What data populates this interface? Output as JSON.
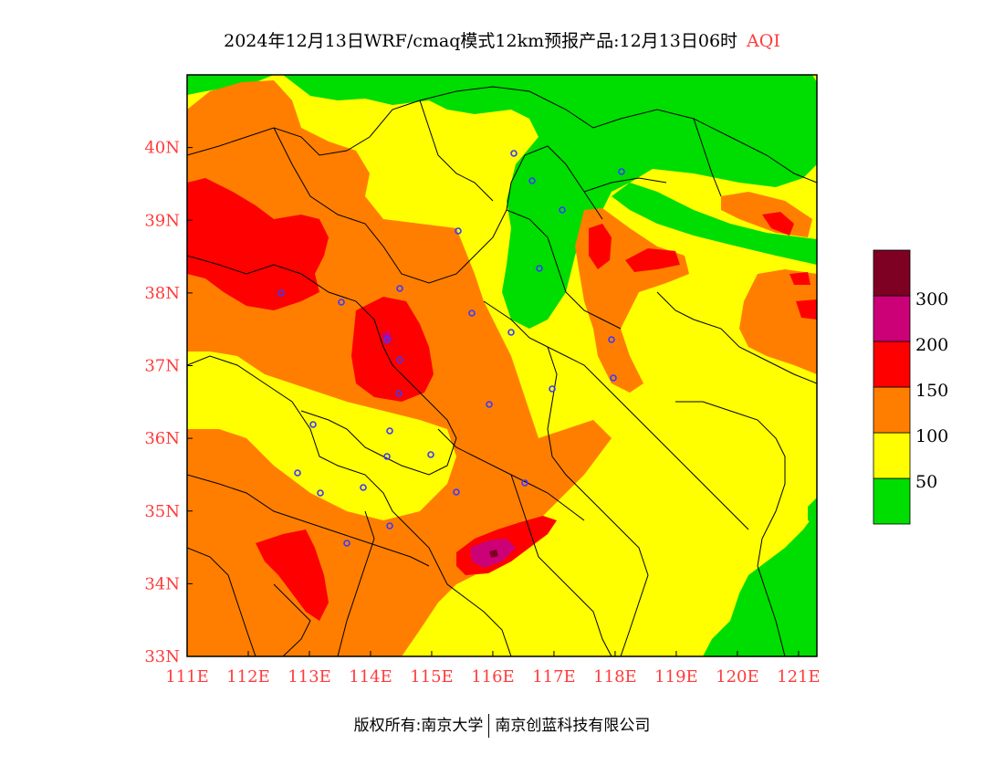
{
  "title": {
    "main": "2024年12月13日WRF/cmaq模式12km预报产品:12月13日06时",
    "variable": "AQI"
  },
  "footer": {
    "copyright": "版权所有:南京大学",
    "company": "南京创蓝科技有限公司"
  },
  "axes": {
    "lon_labels": [
      "111E",
      "112E",
      "113E",
      "114E",
      "115E",
      "116E",
      "117E",
      "118E",
      "119E",
      "120E",
      "121E"
    ],
    "lat_labels": [
      "33N",
      "34N",
      "35N",
      "36N",
      "37N",
      "38N",
      "39N",
      "40N"
    ],
    "lon_range": [
      111,
      121.3
    ],
    "lat_range": [
      33,
      41
    ]
  },
  "legend": {
    "labels": [
      "50",
      "100",
      "150",
      "200",
      "300"
    ],
    "colors": [
      "#00dd00",
      "#ffff00",
      "#ff7e00",
      "#ff0000",
      "#cc0077",
      "#7e0023"
    ]
  },
  "colors": {
    "good": "#00dd00",
    "moderate": "#ffff00",
    "usg": "#ff7e00",
    "unhealthy": "#ff0000",
    "very_unhealthy": "#cc0077",
    "hazardous": "#7e0023",
    "city_marker": "#3a3aff",
    "tick_red": "#ff3b3b"
  }
}
